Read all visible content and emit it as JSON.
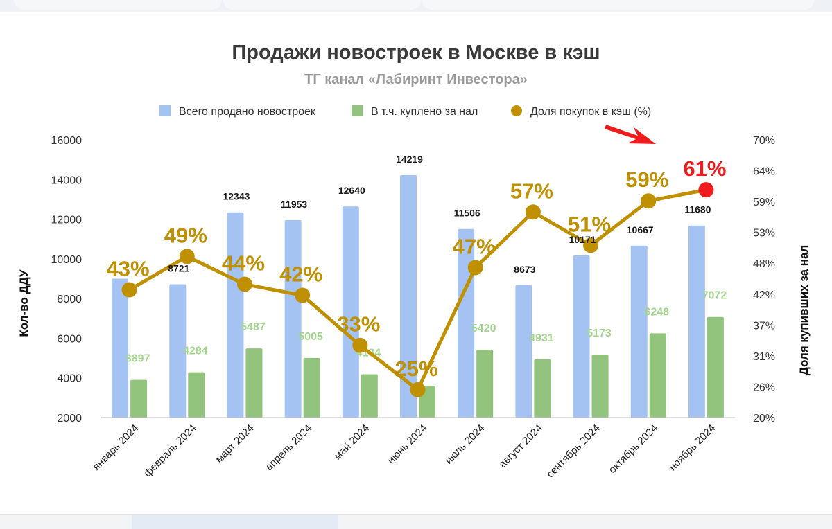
{
  "chart_data": {
    "type": "bar",
    "title": "Продажи новостроек в Москве в кэш",
    "subtitle": "ТГ канал «Лабиринт Инвестора»",
    "ylabel": "Кол-во ДДУ",
    "y2label": "Доля купивших за нал",
    "ylim": [
      2000,
      16000
    ],
    "y2lim": [
      20,
      70
    ],
    "yticks": [
      "16000",
      "14000",
      "12000",
      "10000",
      "8000",
      "6000",
      "4000",
      "2000"
    ],
    "y2ticks": [
      "70%",
      "64%",
      "59%",
      "53%",
      "48%",
      "42%",
      "37%",
      "31%",
      "26%",
      "20%"
    ],
    "legend_position": "top",
    "grid": false,
    "categories": [
      "январь 2024",
      "февраль 2024",
      "март 2024",
      "апрель 2024",
      "май 2024",
      "июнь 2024",
      "июль 2024",
      "август 2024",
      "сентябрь 2024",
      "октябрь 2024",
      "ноябрь 2024"
    ],
    "series": [
      {
        "name": "Всего продано новостроек",
        "kind": "bar",
        "color": "#a5c3f2",
        "values": [
          9000,
          8721,
          12343,
          11953,
          12640,
          14219,
          11506,
          8673,
          10171,
          10667,
          11680
        ],
        "labels": [
          "",
          "8721",
          "12343",
          "11953",
          "12640",
          "14219",
          "11506",
          "8673",
          "10171",
          "10667",
          "11680"
        ]
      },
      {
        "name": "В т.ч. куплено за нал",
        "kind": "bar",
        "color": "#93c47d",
        "values": [
          3897,
          4284,
          5487,
          5005,
          4184,
          3600,
          5420,
          4931,
          5173,
          6248,
          7072
        ],
        "labels": [
          "3897",
          "4284",
          "5487",
          "5005",
          "4184",
          "",
          "5420",
          "4931",
          "5173",
          "6248",
          "7072"
        ]
      },
      {
        "name": "Доля покупок в кэш (%)",
        "kind": "line",
        "axis": "right",
        "color": "#bf9000",
        "values": [
          43,
          49,
          44,
          42,
          33,
          25,
          47,
          57,
          51,
          59,
          61
        ],
        "labels": [
          "43%",
          "49%",
          "44%",
          "42%",
          "33%",
          "25%",
          "47%",
          "57%",
          "51%",
          "59%",
          "61%"
        ],
        "highlight": {
          "index": 10,
          "color": "#ee1c1c"
        }
      }
    ],
    "annotations": [
      {
        "type": "arrow",
        "color": "#ee1c1c",
        "points_to": "61%"
      }
    ]
  }
}
